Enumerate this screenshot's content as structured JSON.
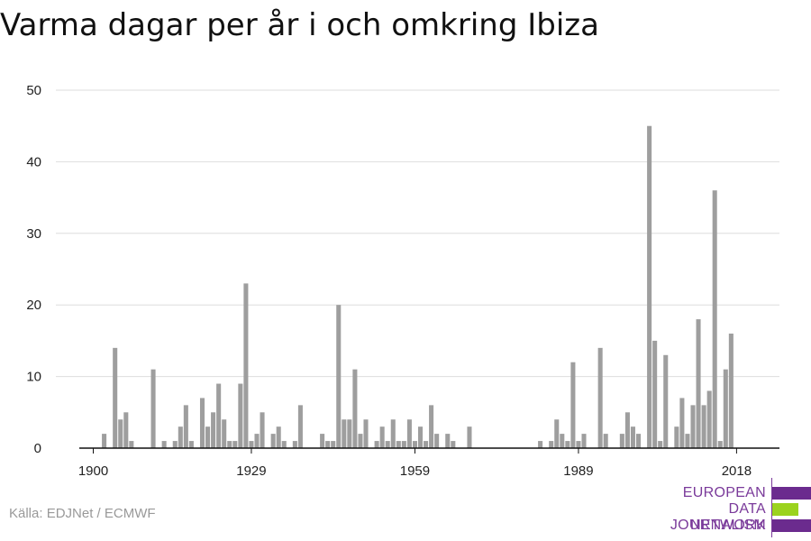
{
  "title": "Varma dagar per år i och omkring Ibiza",
  "source": "Källa: EDJNet / ECMWF",
  "logo": {
    "lines": [
      "EUROPEAN",
      "DATA JOURNALISM",
      "NETWORK"
    ],
    "colors": {
      "purple": "#6b2b8e",
      "green": "#9bd31e",
      "text": "#7a3a9a"
    }
  },
  "colors": {
    "bar": "#9e9e9e",
    "grid": "#dddddd",
    "axis": "#111111"
  },
  "chart_data": {
    "type": "bar",
    "title": "Varma dagar per år i och omkring Ibiza",
    "xlabel": "",
    "ylabel": "",
    "ylim": [
      0,
      50
    ],
    "yticks": [
      0,
      10,
      20,
      30,
      40,
      50
    ],
    "xticks": [
      1900,
      1929,
      1959,
      1989,
      2018
    ],
    "grid": true,
    "x": [
      1900,
      1901,
      1902,
      1903,
      1904,
      1905,
      1906,
      1907,
      1908,
      1909,
      1910,
      1911,
      1912,
      1913,
      1914,
      1915,
      1916,
      1917,
      1918,
      1919,
      1920,
      1921,
      1922,
      1923,
      1924,
      1925,
      1926,
      1927,
      1928,
      1929,
      1930,
      1931,
      1932,
      1933,
      1934,
      1935,
      1936,
      1937,
      1938,
      1939,
      1940,
      1941,
      1942,
      1943,
      1944,
      1945,
      1946,
      1947,
      1948,
      1949,
      1950,
      1951,
      1952,
      1953,
      1954,
      1955,
      1956,
      1957,
      1958,
      1959,
      1960,
      1961,
      1962,
      1963,
      1964,
      1965,
      1966,
      1967,
      1968,
      1969,
      1970,
      1971,
      1972,
      1973,
      1974,
      1975,
      1976,
      1977,
      1978,
      1979,
      1980,
      1981,
      1982,
      1983,
      1984,
      1985,
      1986,
      1987,
      1988,
      1989,
      1990,
      1991,
      1992,
      1993,
      1994,
      1995,
      1996,
      1997,
      1998,
      1999,
      2000,
      2001,
      2002,
      2003,
      2004,
      2005,
      2006,
      2007,
      2008,
      2009,
      2010,
      2011,
      2012,
      2013,
      2014,
      2015,
      2016,
      2017,
      2018
    ],
    "values": [
      0,
      0,
      2,
      0,
      14,
      4,
      5,
      1,
      0,
      0,
      0,
      11,
      0,
      1,
      0,
      1,
      3,
      6,
      1,
      0,
      7,
      3,
      5,
      9,
      4,
      1,
      1,
      9,
      23,
      1,
      2,
      5,
      0,
      2,
      3,
      1,
      0,
      1,
      6,
      0,
      0,
      0,
      2,
      1,
      1,
      20,
      4,
      4,
      11,
      2,
      4,
      0,
      1,
      3,
      1,
      4,
      1,
      1,
      4,
      1,
      3,
      1,
      6,
      2,
      0,
      2,
      1,
      0,
      0,
      3,
      0,
      0,
      0,
      0,
      0,
      0,
      0,
      0,
      0,
      0,
      0,
      0,
      1,
      0,
      1,
      4,
      2,
      1,
      12,
      1,
      2,
      0,
      0,
      14,
      2,
      0,
      0,
      2,
      5,
      3,
      2,
      0,
      45,
      15,
      1,
      13,
      0,
      3,
      7,
      2,
      6,
      18,
      6,
      8,
      36,
      1,
      11,
      16,
      0
    ]
  }
}
